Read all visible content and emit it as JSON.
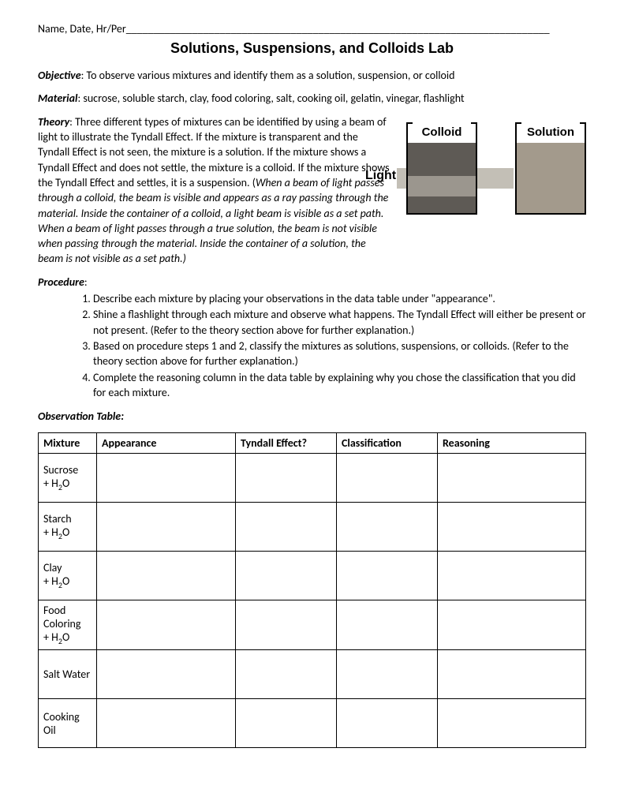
{
  "header": {
    "nameDateLine": "Name, Date, Hr/Per_____________________________________________________________________________"
  },
  "title": "Solutions, Suspensions, and Colloids Lab",
  "objective": {
    "label": "Objective",
    "text": ":  To observe various mixtures and identify them as a solution, suspension, or colloid"
  },
  "material": {
    "label": "Material",
    "text": ":  sucrose, soluble starch, clay, food coloring, salt, cooking oil, gelatin, vinegar, flashlight"
  },
  "theory": {
    "label": "Theory",
    "plain1": ":  Three different types of mixtures can be identified by using a beam of light to illustrate the Tyndall Effect.  If the mixture is transparent and the Tyndall Effect is not seen, the mixture is a solution.  If the mixture shows a Tyndall Effect and does not settle, the mixture is a colloid.  If the mixture shows the Tyndall Effect and settles, it is a suspension.  (",
    "italic": "When a beam of light passes through a colloid, the beam is visible and appears as a ray passing through the material.  Inside the container of a colloid, a light beam is visible as a set path.  When a beam of light passes through a true solution, the beam is not visible when passing through the material.  Inside the container of a solution, the beam is not visible as a set path.)"
  },
  "diagram": {
    "colloidLabel": "Colloid",
    "solutionLabel": "Solution",
    "lightLabel": "Light",
    "colors": {
      "colloidDark": "#5e5a55",
      "colloidBeam": "#9b968e",
      "solutionFill": "#a39a8c",
      "lightBeam": "#c3bfb6"
    }
  },
  "procedure": {
    "label": "Procedure",
    "items": [
      "Describe each mixture by placing your observations in the data table under \"appearance\".",
      "Shine a flashlight through each mixture and observe what happens.  The Tyndall Effect will either be present or not present.  (Refer to the theory section above for further explanation.)",
      "Based on procedure steps 1 and 2, classify the mixtures as solutions, suspensions, or colloids.  (Refer to the theory section above for further explanation.)",
      "Complete the reasoning column in the data table by explaining why you chose the classification that you did for each mixture."
    ]
  },
  "observationTable": {
    "label": "Observation Table",
    "headers": [
      "Mixture",
      "Appearance",
      "Tyndall Effect?",
      "Classification",
      "Reasoning"
    ],
    "rows": [
      {
        "mixture_html": "Sucrose<br>+ H<sub>2</sub>O"
      },
      {
        "mixture_html": "Starch<br>+ H<sub>2</sub>O"
      },
      {
        "mixture_html": "Clay<br>+ H<sub>2</sub>O"
      },
      {
        "mixture_html": "Food<br>Coloring<br>+ H<sub>2</sub>O"
      },
      {
        "mixture_html": "Salt Water"
      },
      {
        "mixture_html": "Cooking<br>Oil"
      }
    ]
  }
}
